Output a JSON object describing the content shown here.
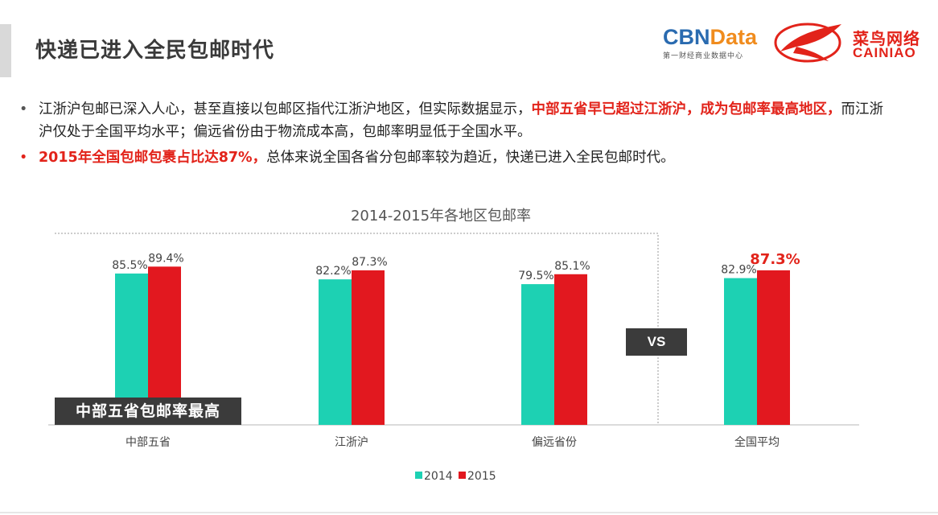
{
  "header": {
    "title": "快递已进入全民包邮时代",
    "logo_cbn": {
      "word_a": "CBN",
      "word_b": "Data",
      "sub": "第一财经商业数据中心"
    },
    "logo_cainiao": {
      "cn": "菜鸟网络",
      "en": "CAINIAO"
    }
  },
  "bullets": [
    {
      "parts": [
        {
          "text": "江浙沪包邮已深入人心，甚至直接以包邮区指代江浙沪地区，但实际数据显示，",
          "highlight": false
        },
        {
          "text": "中部五省早已超过江浙沪，成为包邮率最高地区，",
          "highlight": true
        },
        {
          "text": "而江浙沪仅处于全国平均水平；偏远省份由于物流成本高，包邮率明显低于全国水平。",
          "highlight": false
        }
      ]
    },
    {
      "parts": [
        {
          "text": "2015年全国包邮包裹占比达87%，",
          "highlight": true
        },
        {
          "text": "总体来说全国各省分包邮率较为趋近，快递已进入全民包邮时代。",
          "highlight": false
        }
      ]
    }
  ],
  "callout": "中部五省包邮率最高",
  "vs_label": "VS",
  "colors": {
    "series_2014": "#1dd1b3",
    "series_2015": "#e2181f",
    "highlight": "#e2231a"
  },
  "chart_data": {
    "type": "bar",
    "title": "2014-2015年各地区包邮率",
    "categories": [
      "中部五省",
      "江浙沪",
      "偏远省份",
      "全国平均"
    ],
    "series": [
      {
        "name": "2014",
        "values": [
          85.5,
          82.2,
          79.5,
          82.9
        ],
        "labels": [
          "85.5%",
          "82.2%",
          "79.5%",
          "82.9%"
        ]
      },
      {
        "name": "2015",
        "values": [
          89.4,
          87.3,
          85.1,
          87.3
        ],
        "labels": [
          "89.4%",
          "87.3%",
          "85.1%",
          "87.3%"
        ]
      }
    ],
    "ylim": [
      0,
      100
    ],
    "emphasized_label": {
      "series": "2015",
      "category": "全国平均"
    },
    "legend_position": "bottom",
    "grid": false
  }
}
